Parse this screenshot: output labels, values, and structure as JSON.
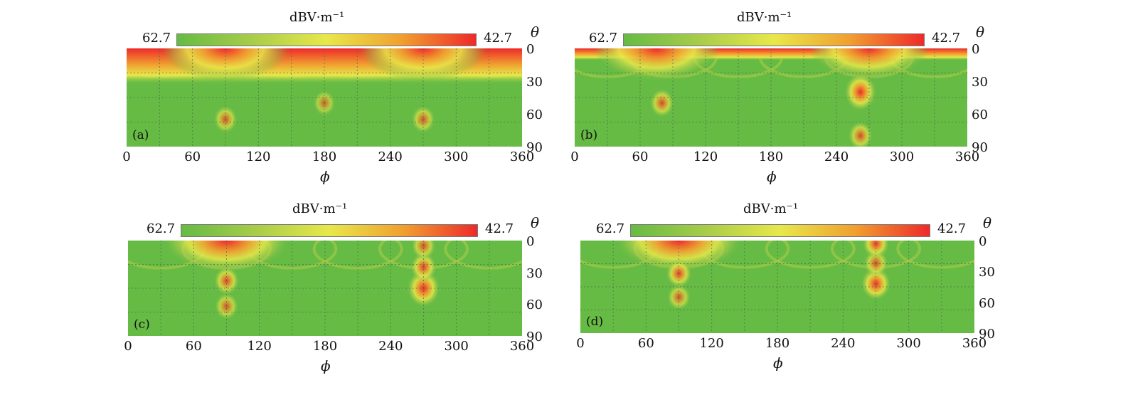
{
  "colorbar": {
    "unit": "dBV·m⁻¹",
    "left_value": "62.7",
    "right_value": "42.7",
    "colors": [
      "#66bb44",
      "#a8cc4a",
      "#e8e84a",
      "#f0a030",
      "#ee2a2a"
    ]
  },
  "axes": {
    "theta_symbol": "θ",
    "phi_symbol": "ϕ",
    "x_ticks": [
      "0",
      "60",
      "120",
      "180",
      "240",
      "300",
      "360"
    ],
    "y_ticks": [
      "0",
      "30",
      "60",
      "90"
    ]
  },
  "chart_data": [
    {
      "type": "heatmap",
      "panel": "(a)",
      "x_axis": "ϕ",
      "y_axis": "θ",
      "xlim": [
        0,
        360
      ],
      "ylim": [
        0,
        90
      ],
      "colorbar_range": [
        62.7,
        42.7
      ],
      "features": [
        {
          "kind": "band",
          "theta_max": 15,
          "amplitude": 1.0
        },
        {
          "kind": "lobe",
          "phi": 90,
          "theta": 0,
          "amplitude": 1.0
        },
        {
          "kind": "lobe",
          "phi": 270,
          "theta": 0,
          "amplitude": 1.0
        },
        {
          "kind": "spot",
          "phi": 90,
          "theta": 65,
          "amplitude": 0.35
        },
        {
          "kind": "spot",
          "phi": 270,
          "theta": 65,
          "amplitude": 0.35
        },
        {
          "kind": "spot",
          "phi": 180,
          "theta": 50,
          "amplitude": 0.25
        }
      ]
    },
    {
      "type": "heatmap",
      "panel": "(b)",
      "x_axis": "ϕ",
      "y_axis": "θ",
      "xlim": [
        0,
        360
      ],
      "ylim": [
        0,
        90
      ],
      "colorbar_range": [
        62.7,
        42.7
      ],
      "features": [
        {
          "kind": "band",
          "theta_max": 5,
          "amplitude": 1.0
        },
        {
          "kind": "lobe",
          "phi": 75,
          "theta": 0,
          "amplitude": 1.0
        },
        {
          "kind": "lobe",
          "phi": 270,
          "theta": 0,
          "amplitude": 0.95
        },
        {
          "kind": "spot",
          "phi": 262,
          "theta": 40,
          "amplitude": 0.9
        },
        {
          "kind": "spot",
          "phi": 80,
          "theta": 50,
          "amplitude": 0.4
        },
        {
          "kind": "spot",
          "phi": 262,
          "theta": 80,
          "amplitude": 0.4
        }
      ]
    },
    {
      "type": "heatmap",
      "panel": "(c)",
      "x_axis": "ϕ",
      "y_axis": "θ",
      "xlim": [
        0,
        360
      ],
      "ylim": [
        0,
        90
      ],
      "colorbar_range": [
        62.7,
        42.7
      ],
      "features": [
        {
          "kind": "lobe",
          "phi": 90,
          "theta": 0,
          "amplitude": 1.0
        },
        {
          "kind": "spot",
          "phi": 270,
          "theta": 45,
          "amplitude": 0.95
        },
        {
          "kind": "spot",
          "phi": 270,
          "theta": 25,
          "amplitude": 0.5
        },
        {
          "kind": "spot",
          "phi": 90,
          "theta": 38,
          "amplitude": 0.45
        },
        {
          "kind": "spot",
          "phi": 90,
          "theta": 62,
          "amplitude": 0.35
        },
        {
          "kind": "spot",
          "phi": 270,
          "theta": 5,
          "amplitude": 0.4
        }
      ]
    },
    {
      "type": "heatmap",
      "panel": "(d)",
      "x_axis": "ϕ",
      "y_axis": "θ",
      "xlim": [
        0,
        360
      ],
      "ylim": [
        0,
        90
      ],
      "colorbar_range": [
        62.7,
        42.7
      ],
      "features": [
        {
          "kind": "lobe",
          "phi": 90,
          "theta": 0,
          "amplitude": 1.0
        },
        {
          "kind": "spot",
          "phi": 270,
          "theta": 42,
          "amplitude": 0.75
        },
        {
          "kind": "spot",
          "phi": 270,
          "theta": 22,
          "amplitude": 0.4
        },
        {
          "kind": "spot",
          "phi": 90,
          "theta": 32,
          "amplitude": 0.5
        },
        {
          "kind": "spot",
          "phi": 90,
          "theta": 55,
          "amplitude": 0.35
        },
        {
          "kind": "spot",
          "phi": 270,
          "theta": 3,
          "amplitude": 0.55
        }
      ]
    }
  ]
}
